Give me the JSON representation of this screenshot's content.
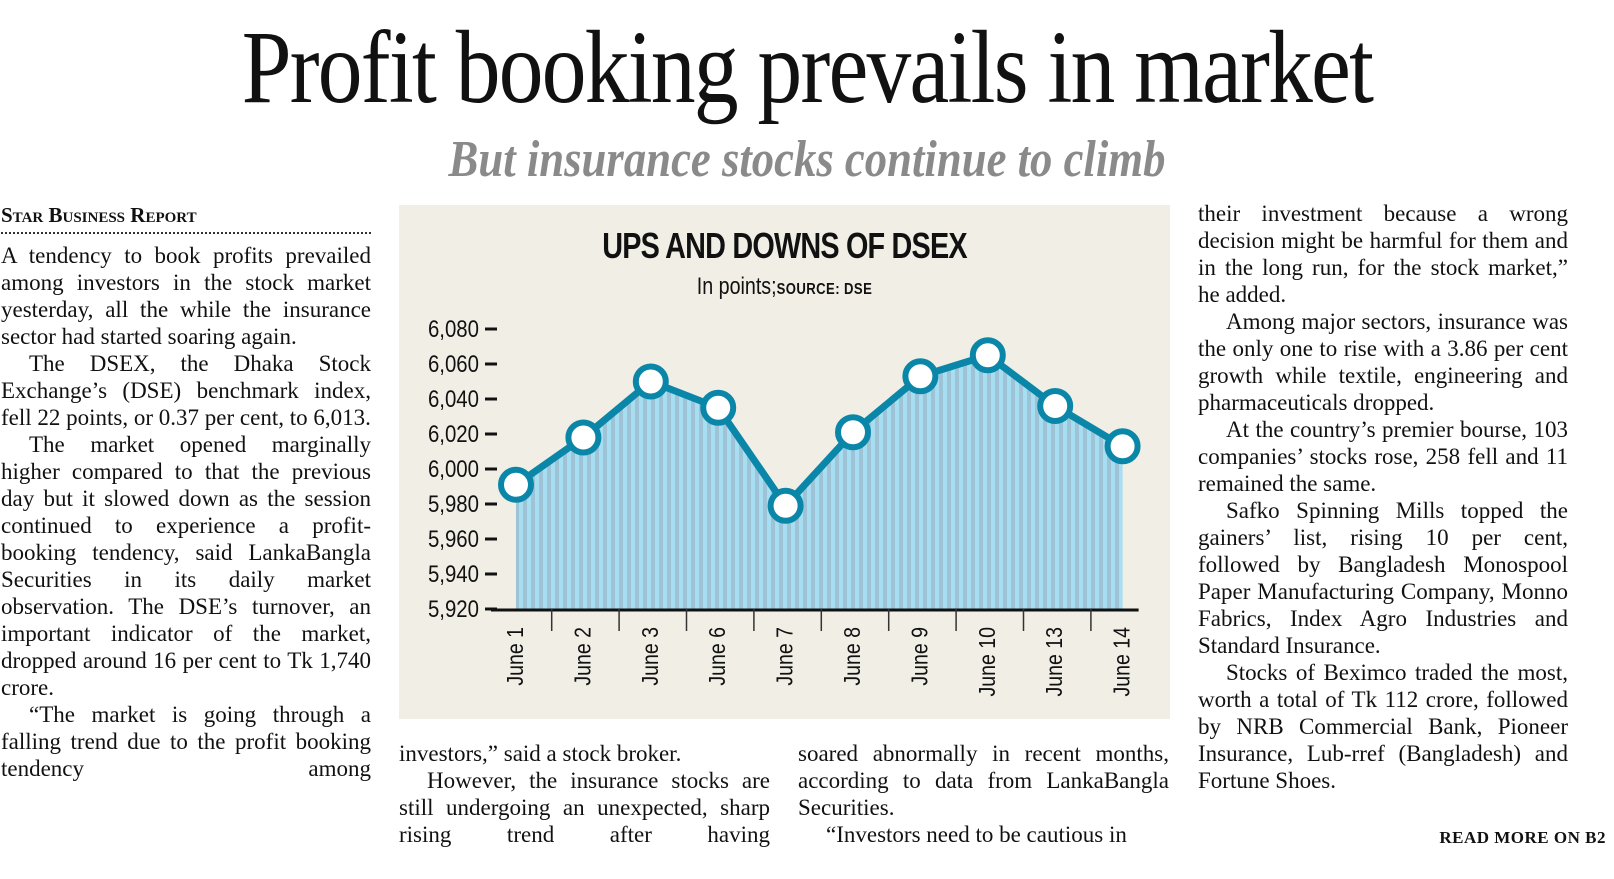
{
  "article": {
    "headline": "Profit booking prevails in market",
    "subheadline": "But insurance stocks continue to climb",
    "byline": "Star Business Report",
    "col1": [
      "A tendency to book profits prevailed among investors in the stock market yesterday, all the while the insurance sector had started soaring again.",
      "The DSEX, the Dhaka Stock Exchange’s (DSE) benchmark index, fell 22 points, or 0.37 per cent, to 6,013.",
      "The market opened marginally higher compared to that the previous day but it slowed down as the session continued to experience a profit-booking tendency, said LankaBangla Securities in its daily market observation. The DSE’s turnover, an important indicator of the market, dropped around 16 per cent to Tk 1,740 crore.",
      "“The market is going through a falling trend due to the profit booking tendency among"
    ],
    "col2": [
      "investors,” said a stock broker.",
      "However, the insurance stocks are still undergoing an unexpected, sharp rising trend after having"
    ],
    "col3": [
      "soared abnormally in recent months, according to data from LankaBangla Securities.",
      "“Investors need to be cautious in"
    ],
    "col4": [
      "their investment because a wrong decision might be harmful for them and in the long run, for the stock market,” he added.",
      "Among major sectors, insurance was the only one to rise with a 3.86 per cent growth while textile, engineering and pharmaceuticals dropped.",
      "At the country’s premier bourse, 103 companies’ stocks rose, 258 fell and 11 remained the same.",
      "Safko Spinning Mills topped the gainers’ list, rising 10 per cent, followed by Bangladesh Monospool Paper Manufacturing Company, Monno Fabrics, Index Agro Industries and Standard Insurance.",
      "Stocks of Beximco traded the most, worth a total of Tk 112 crore, followed by NRB Commercial Bank, Pioneer Insurance, Lub-rref (Bangladesh) and Fortune Shoes."
    ],
    "read_more": "READ MORE ON B2"
  },
  "chart_data": {
    "type": "area",
    "title": "UPS AND DOWNS OF DSEX",
    "subtitle": "In points;",
    "source": "SOURCE: DSE",
    "xlabel": "",
    "ylabel": "",
    "categories": [
      "June 1",
      "June 2",
      "June 3",
      "June 6",
      "June 7",
      "June 8",
      "June 9",
      "June 10",
      "June 13",
      "June 14"
    ],
    "series": [
      {
        "name": "DSEX",
        "values": [
          5991,
          6018,
          6050,
          6035,
          5979,
          6021,
          6053,
          6065,
          6036,
          6013
        ]
      }
    ],
    "ylim": [
      5920,
      6080
    ],
    "yticks": [
      5920,
      5940,
      5960,
      5980,
      6000,
      6020,
      6040,
      6060,
      6080
    ],
    "ytick_labels": [
      "5,920",
      "5,940",
      "5,960",
      "5,980",
      "6,000",
      "6,020",
      "6,040",
      "6,060",
      "6,080"
    ],
    "grid": false,
    "legend": "none",
    "colors": {
      "line": "#0a87a8",
      "fill_light": "#a8def2",
      "fill_dark": "#9ec3d6",
      "marker_fill": "#ffffff",
      "background": "#f1eee6"
    }
  }
}
